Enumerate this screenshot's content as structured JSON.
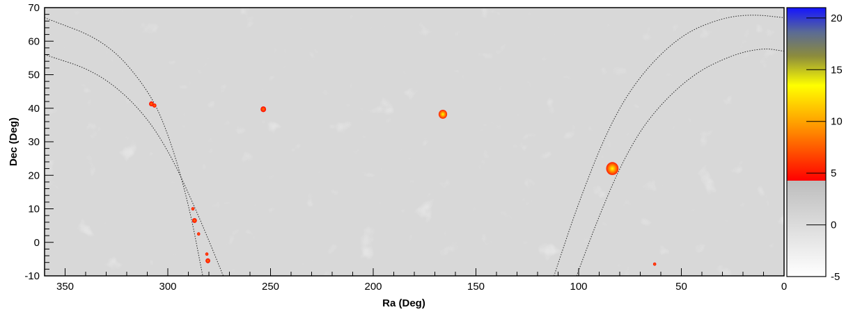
{
  "chart_data": {
    "type": "heatmap",
    "title": "",
    "xlabel": "Ra (Deg)",
    "ylabel": "Dec (Deg)",
    "xlim": [
      360,
      0
    ],
    "ylim": [
      -10,
      70
    ],
    "x_reversed": true,
    "x_ticks": [
      350,
      300,
      250,
      200,
      150,
      100,
      50,
      0
    ],
    "y_ticks": [
      -10,
      0,
      10,
      20,
      30,
      40,
      50,
      60,
      70
    ],
    "grid": false,
    "colorbar": {
      "position": "right",
      "range": [
        -5,
        21
      ],
      "ticks": [
        -5,
        0,
        5,
        10,
        15,
        20
      ],
      "grey_below": 4.5,
      "colors": {
        "grey_low": "#ffffff",
        "grey_high": "#bdbdbd",
        "red": "#ff0000",
        "orange": "#ff9900",
        "yellow": "#ffff00",
        "olive": "#8c8c3c",
        "blue_grey": "#5a6a96",
        "blue": "#1414ff"
      }
    },
    "background_color": "#d0d0d0",
    "sources": [
      {
        "ra": 83.6,
        "dec": 22.0,
        "peak": 17
      },
      {
        "ra": 166.1,
        "dec": 38.2,
        "peak": 12
      },
      {
        "ra": 253.5,
        "dec": 39.7,
        "peak": 8
      },
      {
        "ra": 308.0,
        "dec": 41.3,
        "peak": 7
      },
      {
        "ra": 306.5,
        "dec": 40.8,
        "peak": 6
      },
      {
        "ra": 287.0,
        "dec": 6.5,
        "peak": 7
      },
      {
        "ra": 287.8,
        "dec": 10.0,
        "peak": 5
      },
      {
        "ra": 281.0,
        "dec": -3.5,
        "peak": 5
      },
      {
        "ra": 280.5,
        "dec": -5.5,
        "peak": 7
      },
      {
        "ra": 285.0,
        "dec": 2.5,
        "peak": 5
      },
      {
        "ra": 63.0,
        "dec": -6.5,
        "peak": 5
      }
    ],
    "boundary_curves": [
      {
        "ra": [
          360,
          330,
          310,
          300,
          290,
          283
        ],
        "dec": [
          67,
          60,
          46,
          33,
          12,
          -10
        ]
      },
      {
        "ra": [
          360,
          335,
          315,
          300,
          285,
          273
        ],
        "dec": [
          56,
          51,
          41,
          28,
          8,
          -10
        ]
      },
      {
        "ra": [
          112,
          100,
          85,
          70,
          50,
          30,
          15,
          0
        ],
        "dec": [
          -10,
          12,
          35,
          50,
          62,
          67,
          68,
          67
        ]
      },
      {
        "ra": [
          101,
          90,
          78,
          65,
          45,
          25,
          10,
          0
        ],
        "dec": [
          -10,
          8,
          25,
          38,
          50,
          56,
          58,
          57
        ]
      }
    ]
  }
}
